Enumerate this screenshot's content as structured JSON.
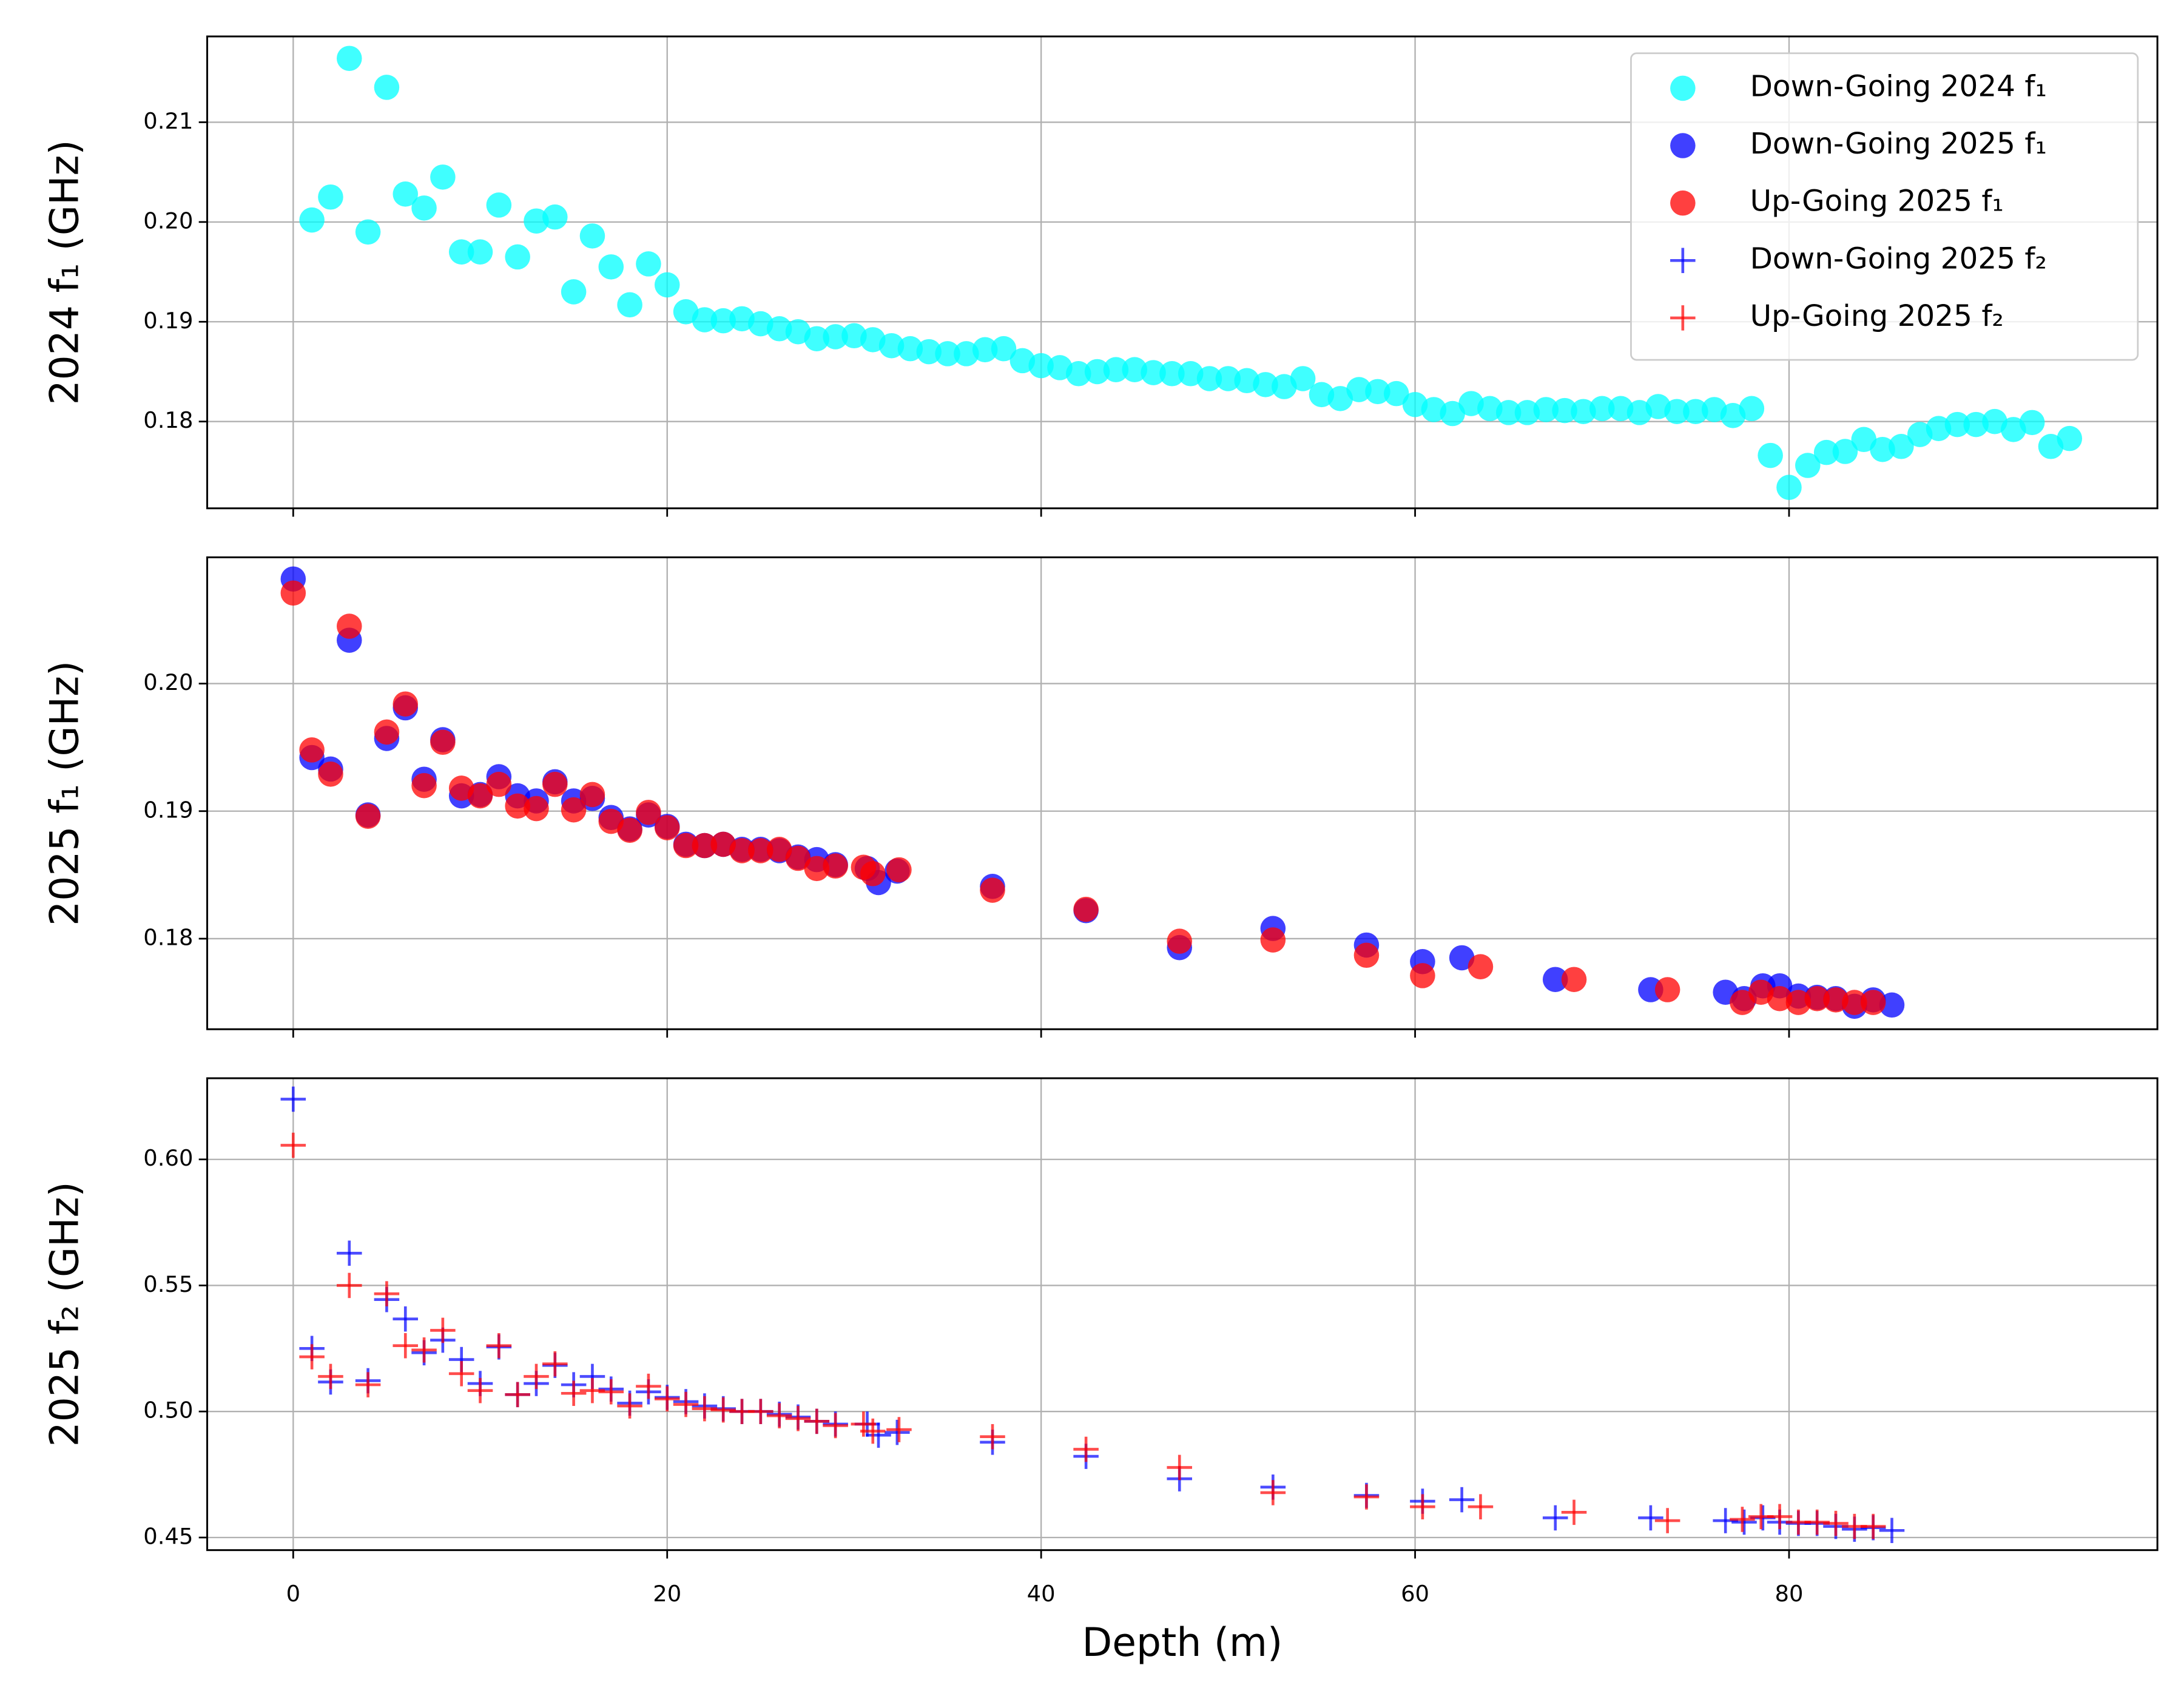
{
  "chart_data": [
    {
      "type": "scatter",
      "ylabel": "2024 f₁ (GHz)",
      "legend": "upper right",
      "grid": true,
      "xlim": [
        -4.6,
        99.7
      ],
      "xticks": [
        0,
        20,
        40,
        60,
        80
      ],
      "ylim": [
        0.1713,
        0.2186
      ],
      "yticks": [
        0.18,
        0.19,
        {
          "value": 0.2,
          "label": "0.20"
        },
        0.21
      ],
      "series": [
        {
          "name": "Down-Going 2024 f₁",
          "color": "#00ffff",
          "marker": "o",
          "x": [
            1,
            2,
            3,
            4,
            5,
            6,
            7,
            8,
            9,
            10,
            11,
            12,
            13,
            14,
            15,
            16,
            17,
            18,
            19,
            20,
            21,
            22,
            23,
            24,
            25,
            26,
            27,
            28,
            29,
            30,
            31,
            32,
            33,
            34,
            35,
            36,
            37,
            38,
            39,
            40,
            41,
            42,
            43,
            44,
            45,
            46,
            47,
            48,
            49,
            50,
            51,
            52,
            53,
            54,
            55,
            56,
            57,
            58,
            59,
            60,
            61,
            62,
            63,
            64,
            65,
            66,
            67,
            68,
            69,
            70,
            71,
            72,
            73,
            74,
            75,
            76,
            77,
            78,
            79,
            80,
            81,
            82,
            83,
            84,
            85,
            86,
            87,
            88,
            89,
            90,
            91,
            92,
            93,
            94,
            95
          ],
          "values": [
            0.2002,
            0.2025,
            0.2164,
            0.199,
            0.2135,
            0.2028,
            0.2014,
            0.2045,
            0.197,
            0.197,
            0.2017,
            0.1965,
            0.2001,
            0.2005,
            0.193,
            0.1986,
            0.1955,
            0.1917,
            0.1958,
            0.1937,
            0.191,
            0.1902,
            0.1901,
            0.1903,
            0.1898,
            0.1893,
            0.189,
            0.1883,
            0.1885,
            0.1886,
            0.1882,
            0.1876,
            0.1873,
            0.187,
            0.1868,
            0.1868,
            0.1872,
            0.1873,
            0.1861,
            0.1856,
            0.1854,
            0.1848,
            0.185,
            0.1852,
            0.1852,
            0.1849,
            0.1848,
            0.1848,
            0.1843,
            0.1843,
            0.1841,
            0.1837,
            0.1835,
            0.1843,
            0.1827,
            0.1823,
            0.1832,
            0.183,
            0.1828,
            0.1817,
            0.1812,
            0.1808,
            0.1818,
            0.1813,
            0.1809,
            0.1809,
            0.1812,
            0.1811,
            0.181,
            0.1813,
            0.1813,
            0.1809,
            0.1815,
            0.181,
            0.181,
            0.1812,
            0.1806,
            0.1813,
            0.1766,
            0.1734,
            0.1756,
            0.1769,
            0.177,
            0.1782,
            0.1772,
            0.1775,
            0.1787,
            0.1793,
            0.1797,
            0.1797,
            0.18,
            0.1792,
            0.1799,
            0.1775,
            0.1783
          ]
        }
      ]
    },
    {
      "type": "scatter",
      "ylabel": "2025 f₁ (GHz)",
      "grid": true,
      "xlim": [
        -4.6,
        99.7
      ],
      "xticks": [
        0,
        20,
        40,
        60,
        80
      ],
      "ylim": [
        0.1729,
        0.2099
      ],
      "yticks": [
        0.18,
        0.19,
        {
          "value": 0.2,
          "label": "0.20"
        }
      ],
      "series": [
        {
          "name": "Down-Going 2025 f₁",
          "color": "#0000ff",
          "marker": "o",
          "x": [
            0,
            1,
            2,
            3,
            4,
            5,
            6,
            7,
            8,
            9,
            10,
            11,
            12,
            13,
            14,
            15,
            16,
            17,
            18,
            19,
            20,
            21,
            22,
            23,
            24,
            25,
            26,
            27,
            28,
            29,
            30.7,
            31.3,
            32.3,
            37.4,
            42.4,
            47.4,
            52.4,
            57.4,
            60.4,
            62.5,
            67.5,
            72.6,
            76.6,
            77.6,
            78.6,
            79.5,
            80.5,
            81.5,
            82.5,
            83.5,
            84.5,
            85.5
          ],
          "values": [
            0.2082,
            0.1942,
            0.1933,
            0.2034,
            0.1897,
            0.1957,
            0.1981,
            0.1925,
            0.1956,
            0.1912,
            0.1913,
            0.1927,
            0.1912,
            0.1908,
            0.1923,
            0.1908,
            0.191,
            0.1895,
            0.1886,
            0.1897,
            0.1888,
            0.1874,
            0.1873,
            0.1874,
            0.187,
            0.187,
            0.1869,
            0.1864,
            0.1862,
            0.1858,
            0.1855,
            0.1844,
            0.1853,
            0.1841,
            0.1822,
            0.1793,
            0.1808,
            0.1795,
            0.1782,
            0.1785,
            0.1768,
            0.176,
            0.1758,
            0.1753,
            0.1763,
            0.1763,
            0.1755,
            0.1754,
            0.1753,
            0.1747,
            0.1752,
            0.1748
          ]
        },
        {
          "name": "Up-Going 2025 f₁",
          "color": "#ff0000",
          "marker": "o",
          "x": [
            0,
            1,
            2,
            3,
            4,
            5,
            6,
            7,
            8,
            9,
            10,
            11,
            12,
            13,
            14,
            15,
            16,
            17,
            18,
            19,
            20,
            21,
            22,
            23,
            24,
            25,
            26,
            27,
            28,
            29,
            30.5,
            31,
            32.4,
            37.4,
            42.4,
            47.4,
            52.4,
            57.4,
            60.4,
            63.5,
            68.5,
            73.5,
            77.5,
            78.5,
            79.5,
            80.5,
            81.5,
            82.5,
            83.5,
            84.5
          ],
          "values": [
            0.2071,
            0.1948,
            0.1929,
            0.2045,
            0.1896,
            0.1962,
            0.1984,
            0.192,
            0.1954,
            0.1918,
            0.1912,
            0.1921,
            0.1904,
            0.1902,
            0.1921,
            0.1901,
            0.1913,
            0.1892,
            0.1885,
            0.1899,
            0.1887,
            0.1873,
            0.1873,
            0.1874,
            0.1869,
            0.1869,
            0.187,
            0.1863,
            0.1855,
            0.1857,
            0.1856,
            0.1851,
            0.1854,
            0.1838,
            0.1823,
            0.1798,
            0.1799,
            0.1787,
            0.1771,
            0.1778,
            0.1768,
            0.176,
            0.175,
            0.1758,
            0.1753,
            0.175,
            0.1753,
            0.1752,
            0.175,
            0.175
          ]
        }
      ]
    },
    {
      "type": "scatter",
      "ylabel": "2025 f₂ (GHz)",
      "xlabel": "Depth (m)",
      "grid": true,
      "xlim": [
        -4.6,
        99.7
      ],
      "xticks": [
        0,
        20,
        40,
        60,
        80
      ],
      "ylim": [
        0.445,
        0.6322
      ],
      "yticks": [
        0.45,
        {
          "value": 0.5,
          "label": "0.50"
        },
        0.55,
        {
          "value": 0.6,
          "label": "0.60"
        }
      ],
      "series": [
        {
          "name": "Down-Going 2025 f₂",
          "color": "#0000ff",
          "marker": "+",
          "x": [
            0,
            1,
            2,
            3,
            4,
            5,
            6,
            7,
            8,
            9,
            10,
            11,
            12,
            13,
            14,
            15,
            16,
            17,
            18,
            19,
            20,
            21,
            22,
            23,
            24,
            25,
            26,
            27,
            28,
            29,
            30.7,
            31.3,
            32.3,
            37.4,
            42.4,
            47.4,
            52.4,
            57.4,
            60.4,
            62.5,
            67.5,
            72.6,
            76.6,
            77.6,
            78.6,
            79.5,
            80.5,
            81.5,
            82.5,
            83.5,
            84.5,
            85.5
          ],
          "values": [
            0.6239,
            0.525,
            0.5117,
            0.5628,
            0.5122,
            0.5444,
            0.5367,
            0.5233,
            0.5283,
            0.5206,
            0.5111,
            0.5256,
            0.5067,
            0.5111,
            0.5183,
            0.5106,
            0.5139,
            0.5089,
            0.5033,
            0.5078,
            0.5056,
            0.5039,
            0.5022,
            0.5011,
            0.5,
            0.5,
            0.4989,
            0.4978,
            0.4961,
            0.495,
            0.495,
            0.4906,
            0.4917,
            0.4878,
            0.4822,
            0.4733,
            0.47,
            0.4667,
            0.4644,
            0.465,
            0.4578,
            0.4578,
            0.4567,
            0.4561,
            0.4578,
            0.4561,
            0.4556,
            0.4556,
            0.4544,
            0.4533,
            0.4539,
            0.4528
          ]
        },
        {
          "name": "Up-Going 2025 f₂",
          "color": "#ff0000",
          "marker": "+",
          "x": [
            0,
            1,
            2,
            3,
            4,
            5,
            6,
            7,
            8,
            9,
            10,
            11,
            12,
            13,
            14,
            15,
            16,
            17,
            18,
            19,
            20,
            21,
            22,
            23,
            24,
            25,
            26,
            27,
            28,
            29,
            30.5,
            31,
            32.4,
            37.4,
            42.4,
            47.4,
            52.4,
            57.4,
            60.4,
            63.5,
            68.5,
            73.5,
            77.5,
            78.5,
            79.5,
            80.5,
            81.5,
            82.5,
            83.5,
            84.5
          ],
          "values": [
            0.6056,
            0.5217,
            0.5139,
            0.55,
            0.5106,
            0.5467,
            0.5261,
            0.5244,
            0.5322,
            0.515,
            0.5083,
            0.5261,
            0.5067,
            0.5139,
            0.5189,
            0.5072,
            0.5083,
            0.5078,
            0.5022,
            0.51,
            0.505,
            0.5028,
            0.5011,
            0.5006,
            0.5,
            0.5,
            0.4983,
            0.4972,
            0.4961,
            0.4944,
            0.495,
            0.4922,
            0.4928,
            0.49,
            0.485,
            0.4778,
            0.4678,
            0.4661,
            0.4622,
            0.4622,
            0.46,
            0.4567,
            0.4572,
            0.4583,
            0.4583,
            0.4561,
            0.4561,
            0.4556,
            0.4544,
            0.4544
          ]
        }
      ]
    }
  ]
}
